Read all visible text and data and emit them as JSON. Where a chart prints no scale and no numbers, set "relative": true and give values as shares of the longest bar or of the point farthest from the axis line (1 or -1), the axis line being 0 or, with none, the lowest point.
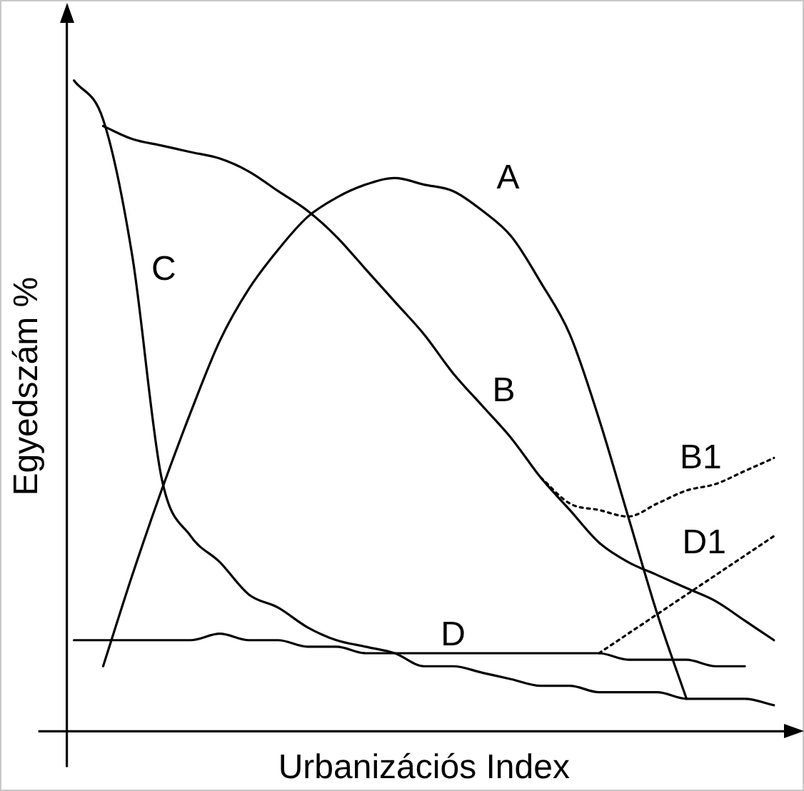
{
  "chart_data": {
    "type": "line",
    "relative": true,
    "xlabel": "Urbanizációs Index",
    "ylabel": "Egyedszám %",
    "grid": false,
    "legend": false,
    "marker": "none",
    "categories": [
      null,
      null,
      null,
      null,
      null,
      null,
      null,
      null,
      null,
      null,
      null,
      null,
      null,
      null,
      null,
      null,
      null,
      null,
      null,
      null,
      null,
      null,
      null,
      null,
      null
    ],
    "series": [
      {
        "name": "A",
        "color": "#000000",
        "values": [
          null,
          0.1,
          0.24,
          0.37,
          0.49,
          0.6,
          0.68,
          0.74,
          0.79,
          0.82,
          0.84,
          0.85,
          0.84,
          0.83,
          0.8,
          0.76,
          0.69,
          0.61,
          0.48,
          0.33,
          0.18,
          0.05,
          null,
          null,
          null
        ]
      },
      {
        "name": "B",
        "color": "#000000",
        "values": [
          null,
          0.93,
          0.91,
          0.9,
          0.89,
          0.88,
          0.86,
          0.83,
          0.8,
          0.76,
          0.71,
          0.66,
          0.61,
          0.55,
          0.5,
          0.45,
          0.39,
          0.34,
          0.29,
          0.26,
          0.24,
          0.22,
          0.2,
          0.17,
          0.14
        ]
      },
      {
        "name": "C",
        "color": "#000000",
        "values": [
          1.0,
          0.94,
          0.73,
          0.39,
          0.3,
          0.26,
          0.21,
          0.19,
          0.16,
          0.14,
          0.13,
          0.12,
          0.1,
          0.1,
          0.09,
          0.08,
          0.07,
          0.07,
          0.06,
          0.06,
          0.06,
          0.05,
          0.05,
          0.05,
          0.04
        ]
      },
      {
        "name": "D",
        "color": "#000000",
        "values": [
          0.14,
          0.14,
          0.14,
          0.14,
          0.14,
          0.15,
          0.14,
          0.14,
          0.13,
          0.13,
          0.12,
          0.12,
          0.12,
          0.12,
          0.12,
          0.12,
          0.12,
          0.12,
          0.12,
          0.11,
          0.11,
          0.11,
          0.1,
          0.1,
          null
        ]
      },
      {
        "name": "B1",
        "color": "#000000",
        "line_style": "dotted",
        "values": [
          null,
          null,
          null,
          null,
          null,
          null,
          null,
          null,
          null,
          null,
          null,
          null,
          null,
          null,
          null,
          null,
          0.39,
          0.35,
          0.34,
          0.33,
          0.35,
          0.37,
          0.38,
          0.4,
          0.42
        ]
      },
      {
        "name": "D1",
        "color": "#000000",
        "line_style": "dotted",
        "values": [
          null,
          null,
          null,
          null,
          null,
          null,
          null,
          null,
          null,
          null,
          null,
          null,
          null,
          null,
          null,
          null,
          null,
          null,
          0.12,
          0.15,
          0.18,
          0.21,
          0.24,
          0.27,
          0.3
        ]
      }
    ]
  }
}
